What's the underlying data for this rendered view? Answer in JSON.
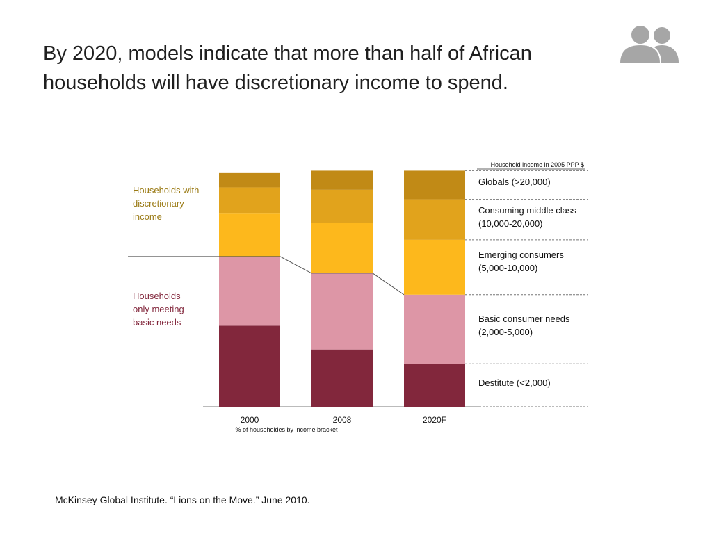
{
  "slide": {
    "title_line1": "By 2020, models indicate that more than half of African",
    "title_line2": "households will have discretionary income to spend.",
    "source": "McKinsey Global Institute. “Lions on the Move.” June 2010.",
    "icon": "people-icon"
  },
  "chart_data": {
    "type": "bar",
    "stacked": true,
    "categories": [
      "2000",
      "2008",
      "2020F"
    ],
    "xlabel": "% of householdes by income bracket",
    "legend_title": "Household income in 2005 PPP $",
    "ylim": [
      0,
      100
    ],
    "series": [
      {
        "name": "Destitute (<2,000)",
        "color": "#82273c",
        "values": [
          34,
          24,
          18
        ]
      },
      {
        "name": "Basic consumer needs (2,000-5,000)",
        "color": "#dd96a6",
        "values": [
          29,
          32,
          29
        ]
      },
      {
        "name": "Emerging consumers (5,000-10,000)",
        "color": "#fdb81c",
        "values": [
          18,
          21,
          23
        ]
      },
      {
        "name": "Consuming middle class (10,000-20,000)",
        "color": "#e1a31c",
        "values": [
          11,
          14,
          17
        ]
      },
      {
        "name": "Globals (>20,000)",
        "color": "#c18a16",
        "values": [
          6,
          8,
          12
        ]
      }
    ],
    "legend_lines": [
      [
        "Globals (>20,000)"
      ],
      [
        "Consuming middle class",
        "(10,000-20,000)"
      ],
      [
        "Emerging consumers",
        "(5,000-10,000)"
      ],
      [
        "Basic consumer needs",
        "(2,000-5,000)"
      ],
      [
        "Destitute (<2,000)"
      ]
    ],
    "group_labels": [
      {
        "lines": [
          "Households with",
          "discretionary",
          "income"
        ],
        "color": "#9a7a14"
      },
      {
        "lines": [
          "Households",
          "only meeting",
          "basic needs"
        ],
        "color": "#82273c"
      }
    ]
  }
}
